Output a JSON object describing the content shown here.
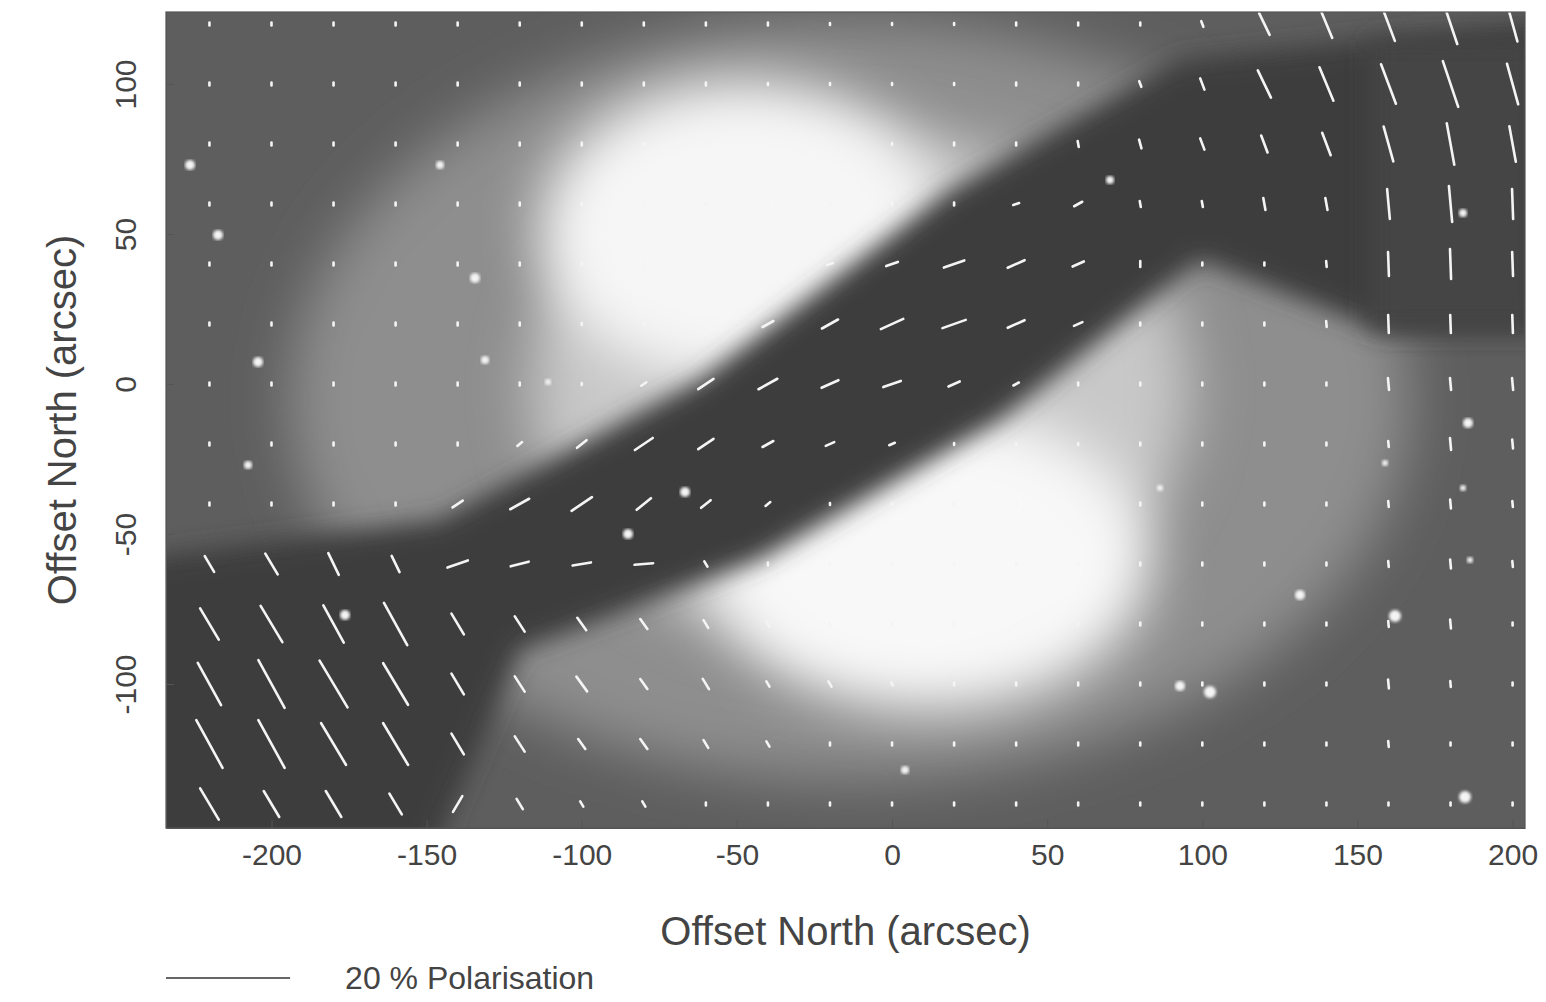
{
  "chart_data": {
    "type": "vector_field",
    "x_label": "Offset North (arcsec)",
    "y_label": "Offset North (arcsec)",
    "xlim": [
      -234,
      204
    ],
    "ylim": [
      -148,
      124
    ],
    "xticks": [
      -200,
      -150,
      -100,
      -50,
      0,
      50,
      100,
      150,
      200
    ],
    "yticks": [
      -100,
      -50,
      0,
      50,
      100
    ],
    "grid": false,
    "legend": "bottom-left",
    "color": "#f4f4f4",
    "scale_bar": {
      "value": 20,
      "label": "20 % Polarisation"
    },
    "vectors": {
      "x": [
        -220,
        -200,
        -180,
        -160,
        -140,
        -120,
        -100,
        -80,
        -60,
        -40,
        -20,
        0,
        20,
        40,
        60,
        80,
        100,
        120,
        140,
        160,
        180,
        200
      ],
      "y": [
        120,
        100,
        80,
        60,
        40,
        20,
        0,
        -20,
        -40,
        -60,
        -80,
        -100,
        -120,
        -140
      ],
      "values": [
        [
          0.5,
          0.5,
          0.5,
          0.5,
          0.5,
          0.5,
          0.5,
          0.5,
          0.5,
          0.5,
          0.3,
          0.3,
          0.3,
          0.5,
          0.5,
          0.5,
          1,
          4,
          5,
          6,
          7,
          6
        ],
        [
          0.5,
          0.5,
          0.5,
          0.5,
          0.5,
          0.5,
          0.5,
          0.5,
          0.5,
          0.3,
          0.3,
          0.3,
          0.3,
          0.5,
          0.5,
          1,
          2,
          5,
          6,
          7,
          8,
          7
        ],
        [
          0.5,
          0.5,
          0.5,
          0.5,
          0.5,
          0.5,
          0.5,
          0.3,
          0.3,
          0.3,
          0.3,
          0.3,
          0.5,
          0.5,
          1,
          1.5,
          2,
          3,
          4,
          6,
          7,
          6
        ],
        [
          0.5,
          0.5,
          0.5,
          0.5,
          0.5,
          0.5,
          0.3,
          0.3,
          0.3,
          0.3,
          0.3,
          0.5,
          0.5,
          1,
          1.5,
          1,
          1,
          2,
          2,
          5,
          6,
          5
        ],
        [
          0.5,
          0.5,
          0.5,
          0.5,
          0.5,
          0.5,
          0.3,
          0.3,
          0.3,
          0.3,
          1,
          2,
          3.5,
          3,
          2,
          1,
          0.5,
          0.5,
          1,
          4,
          5,
          4
        ],
        [
          0.5,
          0.5,
          0.5,
          0.5,
          0.5,
          0.5,
          0.3,
          0.3,
          1,
          2,
          3,
          4,
          4,
          3,
          1.5,
          0.5,
          0.5,
          0.5,
          1,
          3,
          3,
          3
        ],
        [
          0.5,
          0.5,
          0.5,
          0.5,
          0.5,
          0.5,
          0.3,
          1,
          3,
          3.5,
          3,
          3,
          2,
          1,
          0.5,
          0.5,
          0.5,
          0.5,
          0.5,
          2,
          2,
          2
        ],
        [
          0.5,
          0.5,
          0.5,
          0.5,
          0.5,
          1,
          2,
          3.5,
          3,
          2,
          1.5,
          1,
          0.3,
          0.3,
          0.3,
          0.5,
          0.5,
          0.5,
          0.5,
          1,
          2,
          1.5
        ],
        [
          0.5,
          0.5,
          0.5,
          0.5,
          2,
          3.5,
          4,
          3,
          2,
          1,
          0.3,
          0.3,
          0.3,
          0.3,
          0.3,
          0.5,
          0.5,
          0.5,
          0.5,
          1,
          1.5,
          1
        ],
        [
          3,
          4,
          4,
          3,
          3.5,
          3,
          3,
          3,
          1,
          0.5,
          0.3,
          0.3,
          0.3,
          0.3,
          0.3,
          0.5,
          0.5,
          0.5,
          0.5,
          1,
          1.5,
          1
        ],
        [
          6,
          7,
          7,
          8,
          4,
          3,
          2.5,
          2,
          1.5,
          1,
          0.5,
          0.5,
          0.5,
          0.3,
          0.3,
          0.5,
          0.5,
          0.5,
          0.5,
          1,
          1.5,
          0.5
        ],
        [
          8,
          9,
          9,
          8,
          4,
          3,
          3,
          2,
          2,
          1,
          1,
          0.5,
          0.5,
          0.5,
          0.5,
          0.5,
          0.5,
          0.5,
          0.5,
          1.5,
          1,
          0.5
        ],
        [
          9,
          9,
          8,
          8,
          4,
          3,
          2,
          2,
          1.5,
          1,
          0.5,
          0.5,
          0.5,
          0.5,
          0.5,
          0.5,
          0.5,
          0.5,
          0.5,
          1,
          0.5,
          0.5
        ],
        [
          6,
          5,
          5,
          4,
          3,
          2,
          1,
          1,
          0.5,
          0.5,
          0.5,
          0.5,
          0.5,
          0.5,
          0.5,
          0.5,
          0.5,
          0.5,
          0.5,
          0.5,
          0.5,
          0.5
        ]
      ],
      "angles": [
        [
          90,
          90,
          90,
          90,
          90,
          90,
          90,
          90,
          90,
          90,
          90,
          90,
          90,
          90,
          90,
          90,
          110,
          115,
          112,
          110,
          108,
          105
        ],
        [
          90,
          90,
          90,
          90,
          90,
          90,
          90,
          90,
          90,
          90,
          90,
          90,
          90,
          90,
          90,
          110,
          110,
          115,
          112,
          110,
          108,
          105
        ],
        [
          90,
          90,
          90,
          90,
          90,
          90,
          90,
          90,
          90,
          90,
          90,
          90,
          90,
          90,
          100,
          105,
          110,
          110,
          110,
          105,
          100,
          100
        ],
        [
          90,
          90,
          90,
          90,
          90,
          90,
          90,
          90,
          90,
          90,
          90,
          90,
          90,
          20,
          30,
          100,
          100,
          100,
          100,
          95,
          95,
          92
        ],
        [
          90,
          90,
          90,
          90,
          90,
          90,
          90,
          90,
          90,
          90,
          20,
          20,
          20,
          25,
          25,
          90,
          90,
          90,
          95,
          92,
          92,
          92
        ],
        [
          90,
          90,
          90,
          90,
          90,
          90,
          90,
          90,
          30,
          30,
          30,
          25,
          20,
          25,
          25,
          90,
          90,
          90,
          95,
          92,
          92,
          92
        ],
        [
          90,
          90,
          90,
          90,
          90,
          90,
          90,
          35,
          35,
          30,
          25,
          20,
          25,
          30,
          90,
          90,
          90,
          90,
          90,
          95,
          95,
          95
        ],
        [
          90,
          90,
          90,
          90,
          90,
          40,
          40,
          35,
          35,
          30,
          25,
          25,
          90,
          90,
          90,
          90,
          90,
          90,
          90,
          95,
          95,
          95
        ],
        [
          90,
          90,
          90,
          90,
          35,
          30,
          35,
          40,
          40,
          40,
          90,
          90,
          90,
          90,
          90,
          90,
          90,
          90,
          90,
          95,
          95,
          95
        ],
        [
          120,
          120,
          115,
          115,
          20,
          15,
          10,
          5,
          120,
          90,
          90,
          90,
          90,
          90,
          90,
          90,
          90,
          90,
          90,
          95,
          95,
          95
        ],
        [
          120,
          120,
          118,
          118,
          120,
          122,
          125,
          125,
          120,
          120,
          120,
          120,
          90,
          90,
          90,
          90,
          90,
          90,
          90,
          95,
          95,
          90
        ],
        [
          118,
          118,
          120,
          120,
          120,
          122,
          125,
          125,
          120,
          120,
          120,
          120,
          90,
          90,
          90,
          90,
          90,
          90,
          90,
          95,
          95,
          90
        ],
        [
          118,
          118,
          120,
          120,
          120,
          122,
          125,
          125,
          120,
          120,
          90,
          90,
          90,
          90,
          90,
          90,
          90,
          90,
          90,
          95,
          90,
          90
        ],
        [
          120,
          120,
          120,
          120,
          60,
          120,
          120,
          120,
          90,
          90,
          90,
          90,
          90,
          90,
          90,
          90,
          90,
          90,
          90,
          90,
          90,
          90
        ]
      ]
    }
  }
}
